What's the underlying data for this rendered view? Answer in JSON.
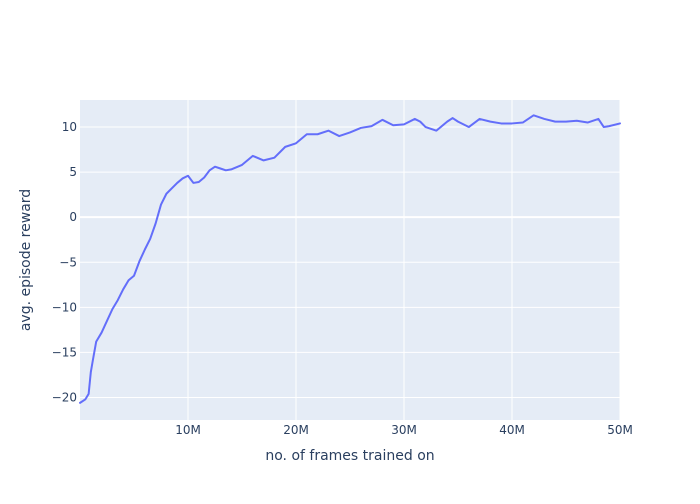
{
  "chart_data": {
    "type": "line",
    "title": "",
    "xlabel": "no. of frames trained on",
    "ylabel": "avg. episode reward",
    "xlim": [
      0,
      50000000
    ],
    "ylim": [
      -22.5,
      13
    ],
    "grid": true,
    "legend": "none",
    "x_ticks": [
      {
        "value": 10000000,
        "label": "10M"
      },
      {
        "value": 20000000,
        "label": "20M"
      },
      {
        "value": 30000000,
        "label": "30M"
      },
      {
        "value": 40000000,
        "label": "40M"
      },
      {
        "value": 50000000,
        "label": "50M"
      }
    ],
    "y_ticks": [
      {
        "value": -20,
        "label": "−20"
      },
      {
        "value": -15,
        "label": "−15"
      },
      {
        "value": -10,
        "label": "−10"
      },
      {
        "value": -5,
        "label": "−5"
      },
      {
        "value": 0,
        "label": "0"
      },
      {
        "value": 5,
        "label": "5"
      },
      {
        "value": 10,
        "label": "10"
      }
    ],
    "series": [
      {
        "name": "avg. episode reward",
        "color": "#636efa",
        "x": [
          0,
          500000,
          800000,
          1000000,
          1200000,
          1500000,
          2000000,
          2500000,
          3000000,
          3500000,
          4000000,
          4500000,
          5000000,
          5500000,
          6000000,
          6500000,
          7000000,
          7500000,
          8000000,
          8500000,
          9000000,
          9500000,
          10000000,
          10500000,
          11000000,
          11500000,
          12000000,
          12500000,
          13000000,
          13500000,
          14000000,
          15000000,
          16000000,
          17000000,
          18000000,
          19000000,
          20000000,
          21000000,
          22000000,
          23000000,
          24000000,
          25000000,
          26000000,
          27000000,
          28000000,
          29000000,
          30000000,
          31000000,
          31500000,
          32000000,
          33000000,
          34000000,
          34500000,
          35000000,
          36000000,
          37000000,
          38000000,
          39000000,
          40000000,
          41000000,
          42000000,
          43000000,
          44000000,
          45000000,
          46000000,
          47000000,
          48000000,
          48500000,
          49000000,
          50000000
        ],
        "values": [
          -20.6,
          -20.2,
          -19.6,
          -17.2,
          -15.8,
          -13.8,
          -12.8,
          -11.5,
          -10.2,
          -9.2,
          -8.0,
          -7.0,
          -6.5,
          -4.9,
          -3.6,
          -2.4,
          -0.7,
          1.4,
          2.6,
          3.2,
          3.8,
          4.3,
          4.6,
          3.8,
          3.9,
          4.4,
          5.2,
          5.6,
          5.4,
          5.2,
          5.3,
          5.8,
          6.8,
          6.3,
          6.6,
          7.8,
          8.2,
          9.2,
          9.2,
          9.6,
          9.0,
          9.4,
          9.9,
          10.1,
          10.8,
          10.2,
          10.3,
          10.9,
          10.6,
          10.0,
          9.6,
          10.6,
          11.0,
          10.6,
          10.0,
          10.9,
          10.6,
          10.4,
          10.4,
          10.5,
          11.3,
          10.9,
          10.6,
          10.6,
          10.7,
          10.5,
          10.9,
          10.0,
          10.1,
          10.4
        ]
      }
    ]
  }
}
